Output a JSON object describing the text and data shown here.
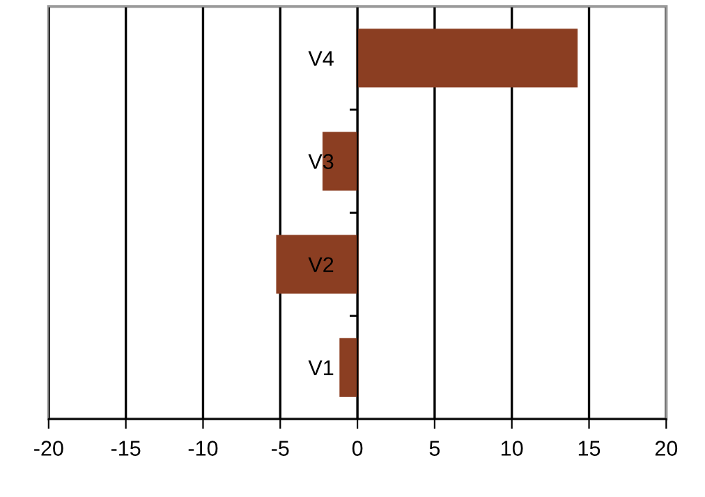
{
  "chart_data": {
    "type": "bar",
    "orientation": "horizontal",
    "categories": [
      "V4",
      "V3",
      "V2",
      "V1"
    ],
    "values": [
      14.2,
      -2.2,
      -5.2,
      -1.1
    ],
    "color": "#8b3e22",
    "xlim": [
      -20,
      20
    ],
    "xticks": [
      -20,
      -15,
      -10,
      -5,
      0,
      5,
      10,
      15,
      20
    ],
    "grid": "x"
  }
}
